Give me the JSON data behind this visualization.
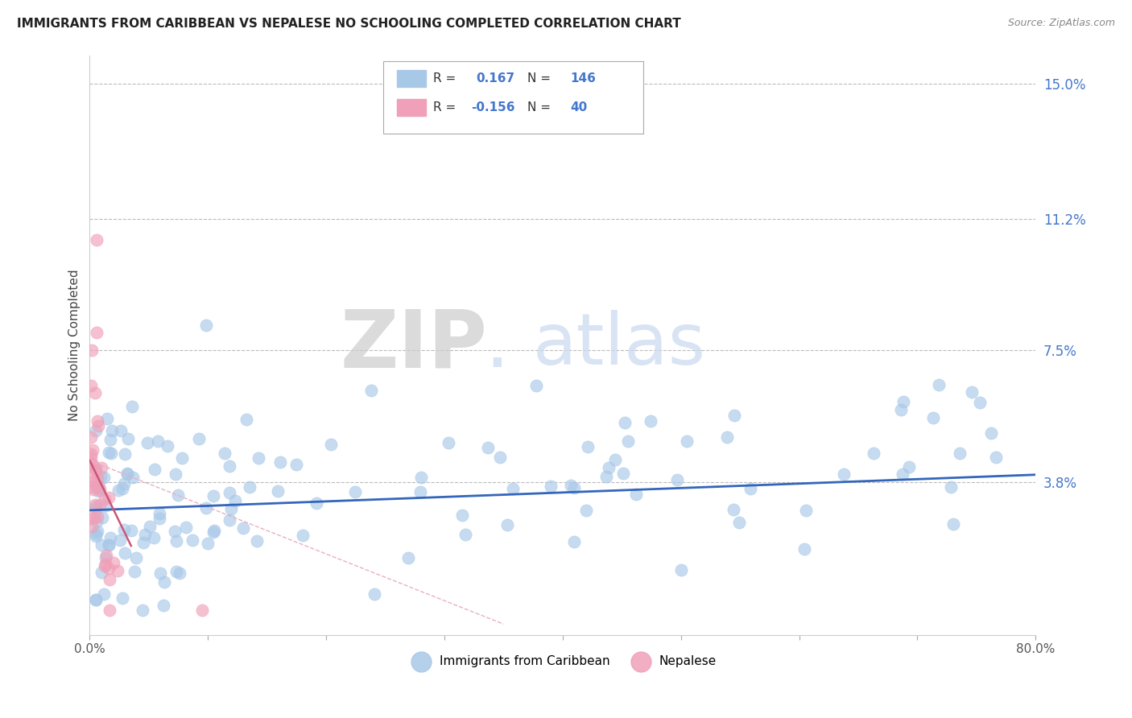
{
  "title": "IMMIGRANTS FROM CARIBBEAN VS NEPALESE NO SCHOOLING COMPLETED CORRELATION CHART",
  "source": "Source: ZipAtlas.com",
  "ylabel": "No Schooling Completed",
  "xlim": [
    0.0,
    0.8
  ],
  "ylim": [
    -0.005,
    0.158
  ],
  "ytick_right_positions": [
    0.038,
    0.075,
    0.112,
    0.15
  ],
  "ytick_right_labels": [
    "3.8%",
    "7.5%",
    "11.2%",
    "15.0%"
  ],
  "legend1_label": "Immigrants from Caribbean",
  "legend2_label": "Nepalese",
  "R1": 0.167,
  "N1": 146,
  "R2": -0.156,
  "N2": 40,
  "color_blue": "#a8c8e8",
  "color_pink": "#f0a0b8",
  "trend_blue": "#3366bb",
  "trend_pink": "#cc5577",
  "trend_pink_dashed": "#e8b0c0",
  "watermark_zip_color": "#cccccc",
  "watermark_atlas_color": "#c8d8f0"
}
